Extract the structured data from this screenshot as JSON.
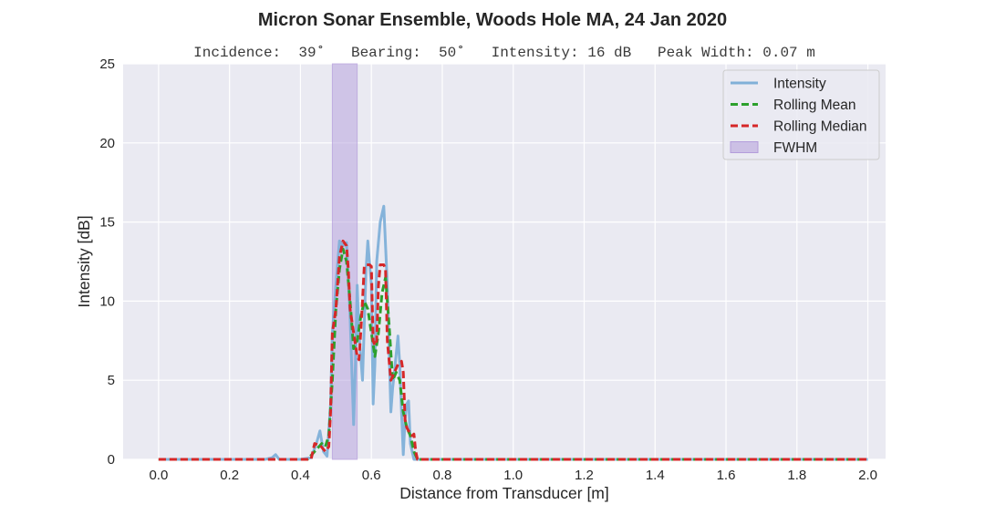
{
  "chart_data": {
    "type": "line",
    "title": "Micron Sonar Ensemble, Woods Hole MA, 24 Jan 2020",
    "subtitle": "Incidence:  39˚   Bearing:  50˚   Intensity: 16 dB   Peak Width: 0.07 m",
    "xlabel": "Distance from Transducer [m]",
    "ylabel": "Intensity [dB]",
    "xlim": [
      -0.1,
      2.05
    ],
    "ylim": [
      0,
      25
    ],
    "xticks": [
      "0.0",
      "0.2",
      "0.4",
      "0.6",
      "0.8",
      "1.0",
      "1.2",
      "1.4",
      "1.6",
      "1.8",
      "2.0"
    ],
    "yticks": [
      "0",
      "5",
      "10",
      "15",
      "20",
      "25"
    ],
    "grid": true,
    "legend_position": "top-right",
    "fwhm": {
      "name": "FWHM",
      "x_range": [
        0.49,
        0.56
      ],
      "color": "#b39ddb"
    },
    "series": [
      {
        "name": "Intensity",
        "style": "solid",
        "color": "#80b0d8",
        "x": [
          0.0,
          0.3,
          0.32,
          0.33,
          0.34,
          0.4,
          0.43,
          0.445,
          0.455,
          0.465,
          0.475,
          0.485,
          0.49,
          0.5,
          0.51,
          0.52,
          0.53,
          0.54,
          0.55,
          0.555,
          0.56,
          0.565,
          0.575,
          0.585,
          0.59,
          0.6,
          0.605,
          0.61,
          0.615,
          0.625,
          0.635,
          0.645,
          0.655,
          0.66,
          0.665,
          0.675,
          0.68,
          0.685,
          0.69,
          0.695,
          0.7,
          0.705,
          0.71,
          0.72,
          0.75,
          2.0
        ],
        "y": [
          0,
          0,
          0.1,
          0.3,
          0,
          0,
          0.1,
          1.0,
          1.8,
          0.5,
          0.2,
          3.5,
          8.0,
          11.0,
          13.8,
          13.5,
          13.7,
          9.0,
          2.2,
          6.0,
          11.0,
          8.0,
          5.0,
          12.0,
          13.8,
          11.0,
          3.5,
          6.0,
          12.5,
          15.0,
          16.0,
          11.0,
          3.0,
          4.5,
          5.5,
          7.8,
          6.0,
          3.0,
          0.3,
          2.5,
          3.5,
          3.7,
          1.0,
          0,
          0,
          0
        ]
      },
      {
        "name": "Rolling Mean",
        "style": "dashed",
        "color": "#2ca02c",
        "x": [
          0.0,
          0.42,
          0.44,
          0.46,
          0.47,
          0.48,
          0.49,
          0.5,
          0.51,
          0.52,
          0.53,
          0.54,
          0.55,
          0.56,
          0.57,
          0.58,
          0.59,
          0.6,
          0.61,
          0.62,
          0.63,
          0.64,
          0.65,
          0.66,
          0.67,
          0.68,
          0.69,
          0.7,
          0.71,
          0.72,
          0.73,
          2.0
        ],
        "y": [
          0,
          0,
          0.5,
          1.0,
          0.8,
          1.5,
          5.0,
          9.5,
          12.0,
          13.3,
          12.5,
          10.0,
          7.0,
          7.5,
          9.0,
          10.0,
          9.5,
          8.0,
          6.5,
          8.0,
          10.5,
          11.5,
          8.5,
          5.0,
          5.5,
          5.0,
          3.0,
          2.0,
          1.5,
          0.5,
          0,
          0
        ]
      },
      {
        "name": "Rolling Median",
        "style": "dashed",
        "color": "#d62728",
        "x": [
          0.0,
          0.43,
          0.44,
          0.455,
          0.47,
          0.48,
          0.485,
          0.49,
          0.5,
          0.51,
          0.52,
          0.53,
          0.535,
          0.54,
          0.55,
          0.56,
          0.565,
          0.57,
          0.575,
          0.58,
          0.585,
          0.595,
          0.6,
          0.605,
          0.61,
          0.615,
          0.62,
          0.625,
          0.635,
          0.64,
          0.645,
          0.655,
          0.665,
          0.675,
          0.685,
          0.69,
          0.695,
          0.7,
          0.705,
          0.71,
          0.715,
          0.72,
          0.725,
          0.73,
          2.0
        ],
        "y": [
          0,
          0,
          1.0,
          0.9,
          0.5,
          0.8,
          3.0,
          8.0,
          9.5,
          12.8,
          13.8,
          13.5,
          12.0,
          9.5,
          8.0,
          6.5,
          6.3,
          8.0,
          10.0,
          12.2,
          12.3,
          12.3,
          12.2,
          7.5,
          7.2,
          7.5,
          11.0,
          12.3,
          12.3,
          12.0,
          7.5,
          5.0,
          5.5,
          6.0,
          6.2,
          5.5,
          2.5,
          2.0,
          1.8,
          1.7,
          1.5,
          1.6,
          0.5,
          0,
          0
        ]
      }
    ]
  }
}
